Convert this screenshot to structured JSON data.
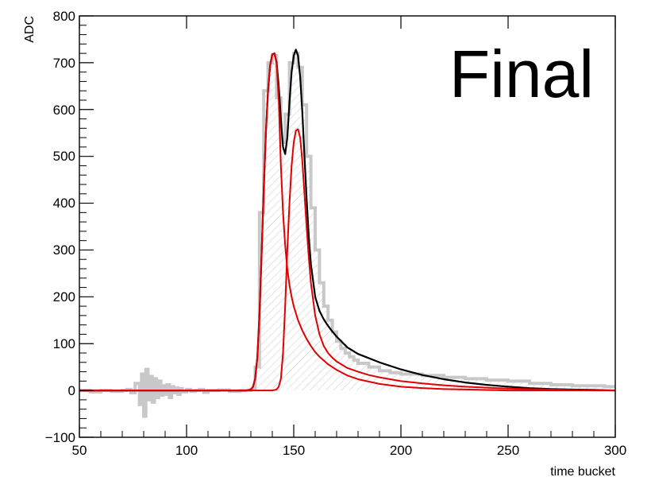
{
  "chart_data": {
    "type": "line",
    "title": "",
    "xlabel": "time bucket",
    "ylabel": "ADC",
    "xlim": [
      50,
      300
    ],
    "ylim": [
      -100,
      800
    ],
    "xticks": [
      50,
      100,
      150,
      200,
      250,
      300
    ],
    "yticks": [
      -100,
      0,
      100,
      200,
      300,
      400,
      500,
      600,
      700,
      800
    ],
    "xtick_labels": [
      "50",
      "100",
      "150",
      "200",
      "250",
      "300"
    ],
    "ytick_labels": [
      "−100",
      "0",
      "100",
      "200",
      "300",
      "400",
      "500",
      "600",
      "700",
      "800"
    ],
    "annotation": "Final",
    "grid": false,
    "series": [
      {
        "kind": "histogram",
        "color": "#c8c8c8",
        "fill": "hatched",
        "x": [
          50,
          55,
          60,
          65,
          70,
          72,
          74,
          76,
          78,
          79,
          80,
          81,
          82,
          83,
          84,
          85,
          86,
          87,
          88,
          89,
          90,
          91,
          92,
          93,
          94,
          95,
          96,
          97,
          98,
          100,
          102,
          104,
          106,
          108,
          110,
          115,
          120,
          125,
          128,
          130,
          132,
          134,
          136,
          138,
          140,
          142,
          144,
          146,
          148,
          150,
          152,
          154,
          156,
          158,
          160,
          162,
          164,
          166,
          168,
          170,
          172,
          174,
          176,
          178,
          180,
          185,
          190,
          195,
          200,
          210,
          220,
          230,
          240,
          250,
          260,
          270,
          280,
          290,
          295,
          300
        ],
        "y": [
          0,
          -3,
          0,
          -2,
          0,
          2,
          -5,
          15,
          -30,
          35,
          -55,
          45,
          -20,
          30,
          -25,
          25,
          -15,
          20,
          -10,
          10,
          -8,
          12,
          -15,
          8,
          -5,
          5,
          -8,
          4,
          -3,
          2,
          -2,
          0,
          2,
          -4,
          0,
          1,
          -2,
          0,
          0,
          2,
          50,
          380,
          640,
          700,
          715,
          625,
          530,
          590,
          700,
          720,
          690,
          610,
          500,
          390,
          300,
          230,
          180,
          150,
          125,
          105,
          90,
          80,
          72,
          65,
          58,
          50,
          42,
          38,
          35,
          32,
          28,
          25,
          22,
          20,
          15,
          12,
          10,
          10,
          8,
          5
        ]
      },
      {
        "kind": "fit",
        "color": "#000000",
        "x": [
          50,
          120,
          128,
          130,
          131,
          132,
          133,
          134,
          135,
          136,
          137,
          138,
          139,
          140,
          141,
          142,
          143,
          144,
          145,
          146,
          147,
          148,
          149,
          150,
          151,
          152,
          153,
          154,
          155,
          156,
          157,
          158,
          160,
          162,
          164,
          166,
          168,
          170,
          175,
          180,
          190,
          200,
          210,
          220,
          230,
          240,
          250,
          260,
          270,
          280,
          290,
          300
        ],
        "y": [
          0,
          0,
          0,
          2,
          8,
          25,
          70,
          160,
          290,
          430,
          550,
          640,
          695,
          718,
          720,
          700,
          650,
          580,
          520,
          505,
          540,
          615,
          680,
          715,
          728,
          715,
          670,
          595,
          500,
          410,
          330,
          270,
          200,
          170,
          152,
          138,
          126,
          115,
          92,
          78,
          60,
          45,
          33,
          24,
          17,
          12,
          8,
          5,
          3,
          2,
          1,
          0
        ]
      },
      {
        "kind": "component",
        "color": "#e00000",
        "x": [
          50,
          128,
          130,
          131,
          132,
          133,
          134,
          135,
          136,
          137,
          138,
          139,
          140,
          141,
          142,
          143,
          144,
          145,
          146,
          147,
          148,
          149,
          150,
          152,
          154,
          156,
          158,
          160,
          162,
          164,
          166,
          168,
          170,
          175,
          180,
          190,
          200,
          210,
          220,
          230,
          240,
          250,
          260,
          270,
          280,
          290,
          300
        ],
        "y": [
          0,
          0,
          2,
          8,
          25,
          70,
          160,
          290,
          430,
          550,
          640,
          695,
          718,
          720,
          700,
          620,
          480,
          380,
          310,
          260,
          225,
          200,
          180,
          150,
          128,
          110,
          95,
          82,
          72,
          64,
          56,
          50,
          44,
          32,
          24,
          14,
          8,
          5,
          3,
          2,
          1,
          0,
          0,
          0,
          0,
          0,
          0
        ]
      },
      {
        "kind": "component",
        "color": "#e00000",
        "x": [
          50,
          140,
          142,
          143,
          144,
          145,
          146,
          147,
          148,
          149,
          150,
          151,
          152,
          153,
          154,
          155,
          156,
          157,
          158,
          160,
          162,
          164,
          166,
          168,
          170,
          175,
          180,
          185,
          190,
          200,
          210,
          220,
          230,
          240,
          250,
          260,
          270,
          280,
          290,
          300
        ],
        "y": [
          0,
          0,
          2,
          8,
          25,
          80,
          180,
          300,
          400,
          480,
          530,
          555,
          558,
          540,
          490,
          420,
          350,
          285,
          230,
          160,
          120,
          95,
          80,
          70,
          62,
          48,
          40,
          33,
          28,
          20,
          15,
          11,
          8,
          6,
          4,
          3,
          2,
          1,
          0,
          0
        ]
      }
    ]
  }
}
